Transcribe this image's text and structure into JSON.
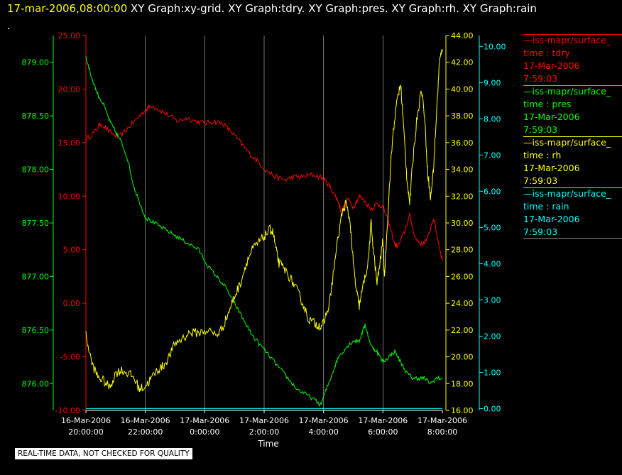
{
  "header": {
    "timestamp": "17-mar-2006,08:00:00",
    "titles": " XY Graph:xy-grid.  XY Graph:tdry.  XY Graph:pres.  XY Graph:rh.  XY Graph:rain"
  },
  "marker": ".",
  "footer": "REAL-TIME DATA, NOT CHECKED FOR QUALITY",
  "colors": {
    "tdry": "#ff0000",
    "pres": "#00ff00",
    "rh": "#ffff00",
    "rain": "#00ffff",
    "grid": "#ffffff"
  },
  "legend": [
    {
      "line": "—iss-mapr/surface_",
      "var": "time : tdry",
      "date": "17-Mar-2006",
      "time": "7:59:03",
      "color": "#ff0000"
    },
    {
      "line": "—iss-mapr/surface_",
      "var": "time : pres",
      "date": "17-Mar-2006",
      "time": "7:59:03",
      "color": "#00ff00"
    },
    {
      "line": "—iss-mapr/surface_",
      "var": "time : rh",
      "date": "17-Mar-2006",
      "time": "7:59:03",
      "color": "#ffff00"
    },
    {
      "line": "—iss-mapr/surface_",
      "var": "time : rain",
      "date": "17-Mar-2006",
      "time": "7:59:03",
      "color": "#00ffff"
    }
  ],
  "chart_data": {
    "type": "line",
    "xlabel": "Time",
    "xlim": [
      0,
      12
    ],
    "x_ticks": [
      {
        "x": 0,
        "date": "16-Mar-2006",
        "time": "20:00:00"
      },
      {
        "x": 2,
        "date": "16-Mar-2006",
        "time": "22:00:00"
      },
      {
        "x": 4,
        "date": "17-Mar-2006",
        "time": "0:00:00"
      },
      {
        "x": 6,
        "date": "17-Mar-2006",
        "time": "2:00:00"
      },
      {
        "x": 8,
        "date": "17-Mar-2006",
        "time": "4:00:00"
      },
      {
        "x": 10,
        "date": "17-Mar-2006",
        "time": "6:00:00"
      },
      {
        "x": 12,
        "date": "17-Mar-2006",
        "time": "8:00:00"
      }
    ],
    "grid": true,
    "axes": {
      "tdry": {
        "range": [
          -10,
          25
        ],
        "ticks": [
          "-10.00",
          "-5.00",
          "0.00",
          "5.00",
          "10.00",
          "15.00",
          "20.00",
          "25.00"
        ],
        "side": "left-inner"
      },
      "pres": {
        "range": [
          875.75,
          879.25
        ],
        "ticks": [
          "876.00",
          "876.50",
          "877.00",
          "877.50",
          "878.00",
          "878.50",
          "879.00"
        ],
        "side": "left-outer"
      },
      "rh": {
        "range": [
          16,
          44
        ],
        "ticks": [
          "16.00",
          "18.00",
          "20.00",
          "22.00",
          "24.00",
          "26.00",
          "28.00",
          "30.00",
          "32.00",
          "34.00",
          "36.00",
          "38.00",
          "40.00",
          "42.00",
          "44.00"
        ],
        "side": "right-inner"
      },
      "rain": {
        "range": [
          -0.05,
          10.3
        ],
        "ticks": [
          "0.00",
          "1.00",
          "2.00",
          "3.00",
          "4.00",
          "5.00",
          "6.00",
          "7.00",
          "8.00",
          "9.00",
          "10.00"
        ],
        "side": "right-outer"
      }
    },
    "series": [
      {
        "key": "tdry",
        "color": "#ff0000",
        "points": [
          [
            0,
            15.3
          ],
          [
            0.3,
            16
          ],
          [
            0.5,
            16.8
          ],
          [
            0.8,
            16
          ],
          [
            1.1,
            15.5
          ],
          [
            1.4,
            16.3
          ],
          [
            1.7,
            17.2
          ],
          [
            2,
            18
          ],
          [
            2.2,
            18.5
          ],
          [
            2.5,
            18
          ],
          [
            2.8,
            17.5
          ],
          [
            3.1,
            17
          ],
          [
            3.4,
            17.3
          ],
          [
            3.7,
            17
          ],
          [
            4,
            16.8
          ],
          [
            4.3,
            17
          ],
          [
            4.6,
            16.8
          ],
          [
            4.9,
            16
          ],
          [
            5.2,
            15
          ],
          [
            5.5,
            14
          ],
          [
            5.8,
            13.2
          ],
          [
            6.1,
            12.3
          ],
          [
            6.4,
            11.8
          ],
          [
            6.7,
            11.5
          ],
          [
            7,
            11.8
          ],
          [
            7.3,
            11.8
          ],
          [
            7.6,
            12
          ],
          [
            7.9,
            11.8
          ],
          [
            8.1,
            11.3
          ],
          [
            8.3,
            10.5
          ],
          [
            8.5,
            9.5
          ],
          [
            8.6,
            8.5
          ],
          [
            8.8,
            9.8
          ],
          [
            9.0,
            9.0
          ],
          [
            9.2,
            10.0
          ],
          [
            9.4,
            9.5
          ],
          [
            9.6,
            8.8
          ],
          [
            9.8,
            9.3
          ],
          [
            10.0,
            9.0
          ],
          [
            10.2,
            7.5
          ],
          [
            10.4,
            5.5
          ],
          [
            10.5,
            5.3
          ],
          [
            10.7,
            6.5
          ],
          [
            10.9,
            8.2
          ],
          [
            11.1,
            6.0
          ],
          [
            11.3,
            5.5
          ],
          [
            11.5,
            6.0
          ],
          [
            11.7,
            8.0
          ],
          [
            11.85,
            6.0
          ],
          [
            12,
            4.0
          ]
        ]
      },
      {
        "key": "pres",
        "color": "#00ff00",
        "points": [
          [
            0,
            879.05
          ],
          [
            0.2,
            878.85
          ],
          [
            0.4,
            878.7
          ],
          [
            0.6,
            878.6
          ],
          [
            0.8,
            878.45
          ],
          [
            1.0,
            878.35
          ],
          [
            1.2,
            878.25
          ],
          [
            1.4,
            878.1
          ],
          [
            1.6,
            877.85
          ],
          [
            1.8,
            877.7
          ],
          [
            2.0,
            877.55
          ],
          [
            2.3,
            877.5
          ],
          [
            2.6,
            877.45
          ],
          [
            2.9,
            877.4
          ],
          [
            3.2,
            877.35
          ],
          [
            3.5,
            877.3
          ],
          [
            3.8,
            877.25
          ],
          [
            4.1,
            877.1
          ],
          [
            4.4,
            877.0
          ],
          [
            4.7,
            876.9
          ],
          [
            5.0,
            876.75
          ],
          [
            5.3,
            876.6
          ],
          [
            5.6,
            876.45
          ],
          [
            5.9,
            876.35
          ],
          [
            6.2,
            876.25
          ],
          [
            6.5,
            876.15
          ],
          [
            6.8,
            876.05
          ],
          [
            7.1,
            875.95
          ],
          [
            7.4,
            875.9
          ],
          [
            7.7,
            875.85
          ],
          [
            7.9,
            875.8
          ],
          [
            8.1,
            875.95
          ],
          [
            8.3,
            876.1
          ],
          [
            8.5,
            876.25
          ],
          [
            8.8,
            876.35
          ],
          [
            9.0,
            876.4
          ],
          [
            9.2,
            876.4
          ],
          [
            9.4,
            876.55
          ],
          [
            9.6,
            876.35
          ],
          [
            9.8,
            876.3
          ],
          [
            10.0,
            876.2
          ],
          [
            10.2,
            876.25
          ],
          [
            10.4,
            876.3
          ],
          [
            10.6,
            876.2
          ],
          [
            10.8,
            876.1
          ],
          [
            11.0,
            876.05
          ],
          [
            11.2,
            876.05
          ],
          [
            11.4,
            876.05
          ],
          [
            11.6,
            876.0
          ],
          [
            11.8,
            876.05
          ],
          [
            12.0,
            876.05
          ]
        ]
      },
      {
        "key": "rh",
        "color": "#ffff00",
        "points": [
          [
            0,
            21.6
          ],
          [
            0.2,
            19.5
          ],
          [
            0.4,
            18.5
          ],
          [
            0.6,
            18.2
          ],
          [
            0.8,
            17.7
          ],
          [
            1.0,
            18.8
          ],
          [
            1.2,
            19.0
          ],
          [
            1.4,
            18.8
          ],
          [
            1.6,
            18.5
          ],
          [
            1.8,
            17.6
          ],
          [
            2.0,
            17.8
          ],
          [
            2.2,
            18.4
          ],
          [
            2.4,
            19.0
          ],
          [
            2.6,
            19.3
          ],
          [
            2.8,
            20.0
          ],
          [
            3.0,
            21.0
          ],
          [
            3.2,
            21.3
          ],
          [
            3.5,
            21.8
          ],
          [
            3.8,
            21.8
          ],
          [
            4.1,
            22.0
          ],
          [
            4.4,
            21.6
          ],
          [
            4.6,
            22.2
          ],
          [
            4.8,
            23.3
          ],
          [
            5.0,
            24.5
          ],
          [
            5.2,
            25.5
          ],
          [
            5.4,
            27.0
          ],
          [
            5.6,
            28.0
          ],
          [
            5.8,
            28.5
          ],
          [
            6.0,
            29.0
          ],
          [
            6.2,
            29.5
          ],
          [
            6.3,
            29.3
          ],
          [
            6.4,
            28.0
          ],
          [
            6.5,
            27.0
          ],
          [
            6.7,
            26.5
          ],
          [
            6.9,
            25.8
          ],
          [
            7.1,
            25.0
          ],
          [
            7.3,
            24.0
          ],
          [
            7.5,
            22.8
          ],
          [
            7.7,
            22.5
          ],
          [
            7.9,
            22.3
          ],
          [
            8.0,
            22.5
          ],
          [
            8.2,
            24.0
          ],
          [
            8.4,
            27.5
          ],
          [
            8.6,
            30.5
          ],
          [
            8.75,
            31.5
          ],
          [
            8.9,
            30.0
          ],
          [
            9.0,
            27.0
          ],
          [
            9.1,
            25.0
          ],
          [
            9.2,
            23.8
          ],
          [
            9.35,
            25.5
          ],
          [
            9.5,
            27.0
          ],
          [
            9.6,
            30.0
          ],
          [
            9.7,
            27.5
          ],
          [
            9.8,
            25.5
          ],
          [
            9.9,
            27.0
          ],
          [
            10.0,
            28.8
          ],
          [
            10.05,
            26.0
          ],
          [
            10.15,
            30.0
          ],
          [
            10.25,
            34.0
          ],
          [
            10.35,
            37.0
          ],
          [
            10.5,
            39.5
          ],
          [
            10.6,
            40.3
          ],
          [
            10.7,
            37.0
          ],
          [
            10.8,
            33.5
          ],
          [
            10.9,
            31.5
          ],
          [
            11.0,
            34.5
          ],
          [
            11.15,
            38.0
          ],
          [
            11.3,
            40.0
          ],
          [
            11.4,
            38.0
          ],
          [
            11.5,
            34.0
          ],
          [
            11.6,
            31.8
          ],
          [
            11.7,
            34.0
          ],
          [
            11.8,
            38.0
          ],
          [
            11.9,
            42.0
          ],
          [
            12.0,
            43.0
          ]
        ]
      },
      {
        "key": "rain",
        "color": "#00ffff",
        "points": [
          [
            0,
            0.0
          ],
          [
            12,
            0.0
          ]
        ]
      }
    ]
  }
}
